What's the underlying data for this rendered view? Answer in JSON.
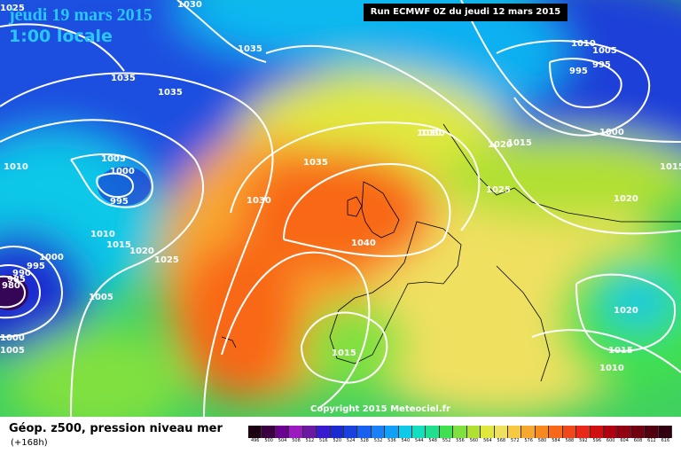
{
  "header": {
    "date": "jeudi 19 mars 2015",
    "time": "1:00 locale",
    "run": "Run ECMWF 0Z du jeudi 12 mars 2015"
  },
  "footer": {
    "title": "Géop. z500, pression niveau mer",
    "subtitle": "(+168h)",
    "copyright": "Copyright 2015 Meteociel.fr"
  },
  "legend": {
    "values": [
      "496",
      "500",
      "504",
      "508",
      "512",
      "516",
      "520",
      "524",
      "528",
      "532",
      "536",
      "540",
      "544",
      "548",
      "552",
      "556",
      "560",
      "564",
      "568",
      "572",
      "576",
      "580",
      "584",
      "588",
      "592",
      "596",
      "600",
      "604",
      "608",
      "612",
      "616"
    ],
    "colors": [
      "#1a0010",
      "#3a0040",
      "#6a0090",
      "#9a1ac0",
      "#6a1aa0",
      "#3a1ad0",
      "#1a2ad0",
      "#1a40e0",
      "#1a60f0",
      "#1a80f8",
      "#10a0f8",
      "#10c8e8",
      "#10e0c0",
      "#20e090",
      "#40e050",
      "#80e040",
      "#b0e030",
      "#e0e840",
      "#f0e060",
      "#f8c840",
      "#f8a830",
      "#f88820",
      "#f86818",
      "#f04818",
      "#e82818",
      "#d01010",
      "#b00010",
      "#900010",
      "#700010",
      "#500010",
      "#300010"
    ]
  },
  "isobar_labels": [
    "1030",
    "1035",
    "1035",
    "1035",
    "1010",
    "1005",
    "1000",
    "995",
    "1010",
    "1015",
    "1020",
    "1025",
    "1000",
    "995",
    "990",
    "985",
    "980",
    "1005",
    "1000",
    "1005",
    "1030",
    "1035",
    "1030",
    "1040",
    "1030",
    "1025",
    "1020",
    "1015",
    "1010",
    "1005",
    "995",
    "995",
    "1000",
    "1015",
    "1020",
    "1020",
    "1015",
    "1010",
    "1015",
    "1025"
  ]
}
